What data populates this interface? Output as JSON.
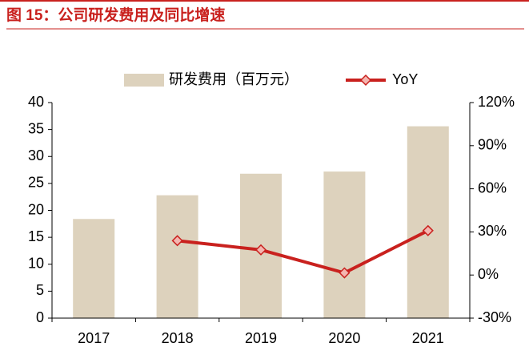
{
  "chart_data": {
    "type": "bar",
    "title": "图 15：公司研发费用及同比增速",
    "categories": [
      "2017",
      "2018",
      "2019",
      "2020",
      "2021"
    ],
    "series": [
      {
        "name": "研发费用（百万元）",
        "type": "bar",
        "color": "#ddd2bd",
        "values": [
          18.4,
          22.8,
          26.8,
          27.2,
          35.6
        ]
      },
      {
        "name": "YoY",
        "type": "line",
        "axis": "y2",
        "color": "#c9211e",
        "values": [
          null,
          23.9,
          17.5,
          1.5,
          30.9
        ]
      }
    ],
    "ylim": [
      0,
      40
    ],
    "yticks": [
      0,
      5,
      10,
      15,
      20,
      25,
      30,
      35,
      40
    ],
    "y2lim": [
      -30,
      120
    ],
    "y2ticks": [
      {
        "value": -30,
        "label": "-30%"
      },
      {
        "value": 0,
        "label": "0%"
      },
      {
        "value": 30,
        "label": "30%"
      },
      {
        "value": 60,
        "label": "60%"
      },
      {
        "value": 90,
        "label": "90%"
      },
      {
        "value": 120,
        "label": "120%"
      }
    ],
    "legend": "top"
  }
}
